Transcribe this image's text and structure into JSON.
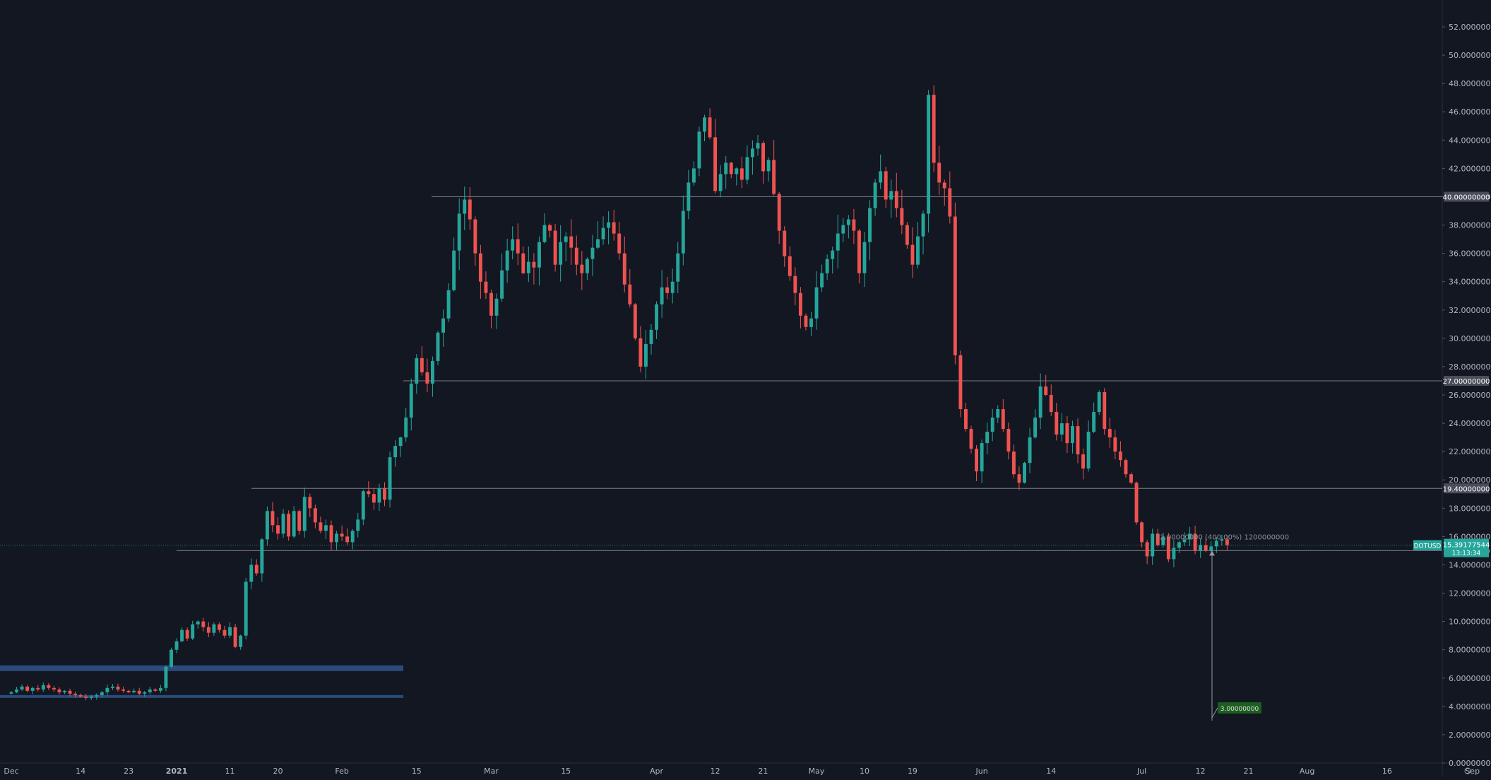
{
  "chart_data": {
    "type": "candlestick",
    "symbol": "DOTUSD",
    "ylim": [
      0,
      52
    ],
    "y_ticks": [
      "0.00000000",
      "2.00000000",
      "4.00000000",
      "6.00000000",
      "8.00000000",
      "10.00000000",
      "12.00000000",
      "14.00000000",
      "16.00000000",
      "18.00000000",
      "20.00000000",
      "22.00000000",
      "24.00000000",
      "26.00000000",
      "28.00000000",
      "30.00000000",
      "32.00000000",
      "34.00000000",
      "36.00000000",
      "38.00000000",
      "40.00000000",
      "42.00000000",
      "44.00000000",
      "46.00000000",
      "48.00000000",
      "50.00000000",
      "52.00000000"
    ],
    "x_ticks": [
      {
        "label": "Dec",
        "day": 0
      },
      {
        "label": "14",
        "day": 13
      },
      {
        "label": "23",
        "day": 22
      },
      {
        "label": "2021",
        "day": 31
      },
      {
        "label": "11",
        "day": 41
      },
      {
        "label": "20",
        "day": 50
      },
      {
        "label": "Feb",
        "day": 62
      },
      {
        "label": "15",
        "day": 76
      },
      {
        "label": "Mar",
        "day": 90
      },
      {
        "label": "15",
        "day": 104
      },
      {
        "label": "Apr",
        "day": 121
      },
      {
        "label": "12",
        "day": 132
      },
      {
        "label": "21",
        "day": 141
      },
      {
        "label": "May",
        "day": 151
      },
      {
        "label": "10",
        "day": 160
      },
      {
        "label": "19",
        "day": 169
      },
      {
        "label": "Jun",
        "day": 182
      },
      {
        "label": "14",
        "day": 195
      },
      {
        "label": "Jul",
        "day": 212
      },
      {
        "label": "12",
        "day": 223
      },
      {
        "label": "21",
        "day": 232
      },
      {
        "label": "Aug",
        "day": 243
      },
      {
        "label": "16",
        "day": 258
      },
      {
        "label": "Sep",
        "day": 274
      }
    ],
    "first_day": 0,
    "last_candle_day": 216,
    "horizontal_levels": [
      {
        "value": 40.0,
        "label": "40.00000000"
      },
      {
        "value": 27.0,
        "label": "27.00000000"
      },
      {
        "value": 19.4,
        "label": "19.40000000"
      },
      {
        "value": 15.0,
        "label": "15.00000000"
      }
    ],
    "support_zones": [
      {
        "low": 6.5,
        "high": 6.9
      },
      {
        "low": 4.6,
        "high": 4.8
      }
    ],
    "current_price": {
      "value": 15.39177544,
      "label": "15.39177544",
      "countdown": "13:13:34",
      "symbol": "DOTUSD"
    },
    "measure": {
      "text": "12.00000000 (400.00%) 1200000000",
      "from": 15.0,
      "to": 3.0,
      "target_label": "3.00000000"
    },
    "closes": [
      5.0,
      5.2,
      5.4,
      5.1,
      5.3,
      5.2,
      5.5,
      5.3,
      5.2,
      5.0,
      5.1,
      4.9,
      4.8,
      4.7,
      4.6,
      4.7,
      4.8,
      5.0,
      5.3,
      5.4,
      5.2,
      5.1,
      5.0,
      5.1,
      4.9,
      5.0,
      5.2,
      5.1,
      5.3,
      6.8,
      8.0,
      8.6,
      9.4,
      8.8,
      9.8,
      10.0,
      9.6,
      9.2,
      9.8,
      9.4,
      9.0,
      9.6,
      8.2,
      9.0,
      12.8,
      14.0,
      13.4,
      15.8,
      17.8,
      16.8,
      16.2,
      17.6,
      16.0,
      17.8,
      16.4,
      18.8,
      18.0,
      17.0,
      16.4,
      16.8,
      15.6,
      16.2,
      16.0,
      15.6,
      16.4,
      17.2,
      19.2,
      19.0,
      18.4,
      19.4,
      18.6,
      21.6,
      22.4,
      23.0,
      24.4,
      26.8,
      28.6,
      27.6,
      26.8,
      28.4,
      30.4,
      31.4,
      33.4,
      36.2,
      38.8,
      39.8,
      38.4,
      36.0,
      34.0,
      33.2,
      31.6,
      32.8,
      34.8,
      36.2,
      37.0,
      36.0,
      34.6,
      35.4,
      35.0,
      36.8,
      38.0,
      37.6,
      35.2,
      36.8,
      37.2,
      36.4,
      35.2,
      34.6,
      35.6,
      36.4,
      37.0,
      37.8,
      38.2,
      37.4,
      36.0,
      33.8,
      32.4,
      30.0,
      28.0,
      29.6,
      30.6,
      32.4,
      33.6,
      33.2,
      34.0,
      36.0,
      39.0,
      41.0,
      42.0,
      44.6,
      45.6,
      44.2,
      40.4,
      41.6,
      42.4,
      41.6,
      42.0,
      41.2,
      42.8,
      43.4,
      43.8,
      41.8,
      42.6,
      40.2,
      37.6,
      35.8,
      34.4,
      33.2,
      31.6,
      30.8,
      31.4,
      33.6,
      34.6,
      35.6,
      36.2,
      37.4,
      38.0,
      38.4,
      37.6,
      34.6,
      36.8,
      39.2,
      41.0,
      41.8,
      39.8,
      40.4,
      39.2,
      38.0,
      36.6,
      35.2,
      37.2,
      38.8,
      47.2,
      42.4,
      41.0,
      40.6,
      38.6,
      28.8,
      25.0,
      23.6,
      22.2,
      20.6,
      22.6,
      23.4,
      24.4,
      25.0,
      23.6,
      22.0,
      20.4,
      19.8,
      21.2,
      23.0,
      24.4,
      26.6,
      26.0,
      24.8,
      23.2,
      24.0,
      22.6,
      23.8,
      21.8,
      20.8,
      23.4,
      24.8,
      26.2,
      23.6,
      23.0,
      22.0,
      21.4,
      20.4,
      19.8,
      17.0,
      15.6,
      14.6,
      16.2,
      15.4,
      16.0,
      14.4,
      15.2,
      15.6,
      15.8,
      16.2,
      15.0,
      15.4,
      15.0,
      15.3,
      15.7,
      15.8,
      15.39
    ]
  }
}
